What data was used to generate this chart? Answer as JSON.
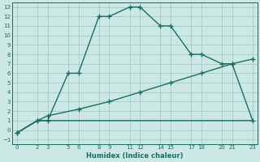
{
  "title": "",
  "xlabel": "Humidex (Indice chaleur)",
  "bg_color": "#cce8e4",
  "grid_color": "#aad0cc",
  "line_color": "#1a6e64",
  "xlim": [
    -0.5,
    23.5
  ],
  "ylim": [
    -1.5,
    13.5
  ],
  "xticks": [
    0,
    2,
    3,
    5,
    6,
    8,
    9,
    11,
    12,
    14,
    15,
    17,
    18,
    20,
    21,
    23
  ],
  "yticks": [
    -1,
    0,
    1,
    2,
    3,
    4,
    5,
    6,
    7,
    8,
    9,
    10,
    11,
    12,
    13
  ],
  "line1_x": [
    0,
    2,
    3,
    5,
    6,
    8,
    9,
    11,
    12,
    14,
    15,
    17,
    18,
    20,
    21,
    23
  ],
  "line1_y": [
    -0.3,
    1.0,
    1.0,
    6.0,
    6.0,
    12.0,
    12.0,
    13.0,
    13.0,
    11.0,
    11.0,
    8.0,
    8.0,
    7.0,
    7.0,
    1.0
  ],
  "line2_x": [
    0,
    2,
    3,
    6,
    9,
    12,
    15,
    18,
    21,
    23
  ],
  "line2_y": [
    -0.3,
    1.0,
    1.5,
    2.2,
    3.0,
    4.0,
    5.0,
    6.0,
    7.0,
    7.5
  ],
  "line3_x": [
    0,
    2,
    3,
    9,
    12,
    23
  ],
  "line3_y": [
    -0.3,
    1.0,
    1.0,
    1.0,
    1.0,
    1.0
  ]
}
